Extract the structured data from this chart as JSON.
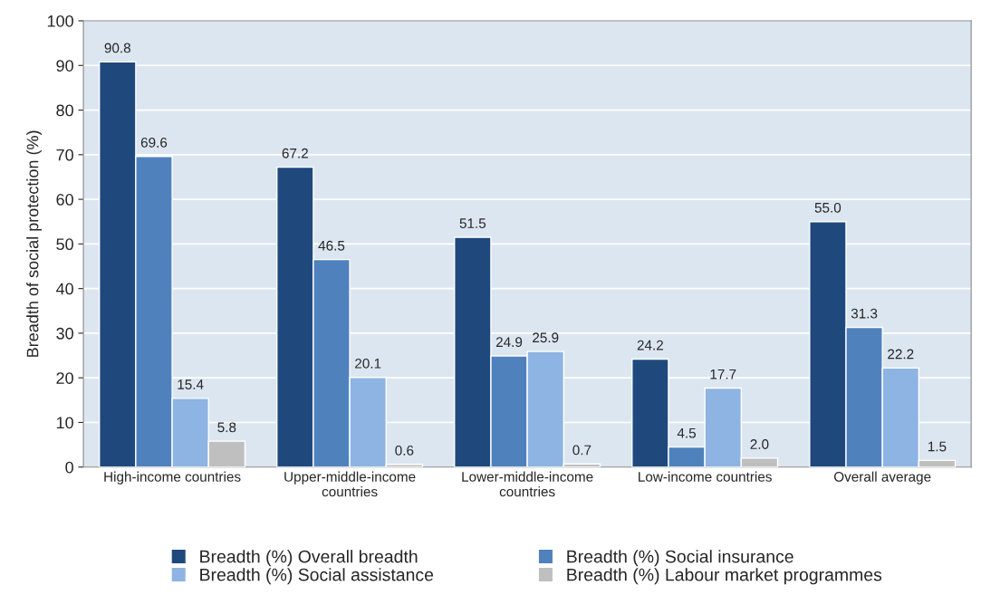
{
  "chart_data": {
    "type": "bar",
    "ylabel": "Breadth of social protection (%)",
    "categories": [
      "High-income countries",
      "Upper-middle-income\ncountries",
      "Lower-middle-income\ncountries",
      "Low-income countries",
      "Overall average"
    ],
    "series": [
      {
        "name": "Breadth (%) Overall breadth",
        "color": "#1f497d",
        "values": [
          90.8,
          67.2,
          51.5,
          24.2,
          55.0
        ],
        "value_labels": [
          "90.8",
          "67.2",
          "51.5",
          "24.2",
          "55.0"
        ]
      },
      {
        "name": "Breadth (%) Social insurance",
        "color": "#4f81bd",
        "values": [
          69.6,
          46.5,
          24.9,
          4.5,
          31.3
        ],
        "value_labels": [
          "69.6",
          "46.5",
          "24.9",
          "4.5",
          "31.3"
        ]
      },
      {
        "name": "Breadth (%) Social assistance",
        "color": "#8db4e2",
        "values": [
          15.4,
          20.1,
          25.9,
          17.7,
          22.2
        ],
        "value_labels": [
          "15.4",
          "20.1",
          "25.9",
          "17.7",
          "22.2"
        ]
      },
      {
        "name": "Breadth (%) Labour market programmes",
        "color": "#bfbfbf",
        "values": [
          5.8,
          0.6,
          0.7,
          2.0,
          1.5
        ],
        "value_labels": [
          "5.8",
          "0.6",
          "0.7",
          "2.0",
          "1.5"
        ]
      }
    ],
    "ylim": [
      0,
      100
    ],
    "yticks": [
      0,
      10,
      20,
      30,
      40,
      50,
      60,
      70,
      80,
      90,
      100
    ],
    "grid": "y",
    "legend": "bottom"
  }
}
